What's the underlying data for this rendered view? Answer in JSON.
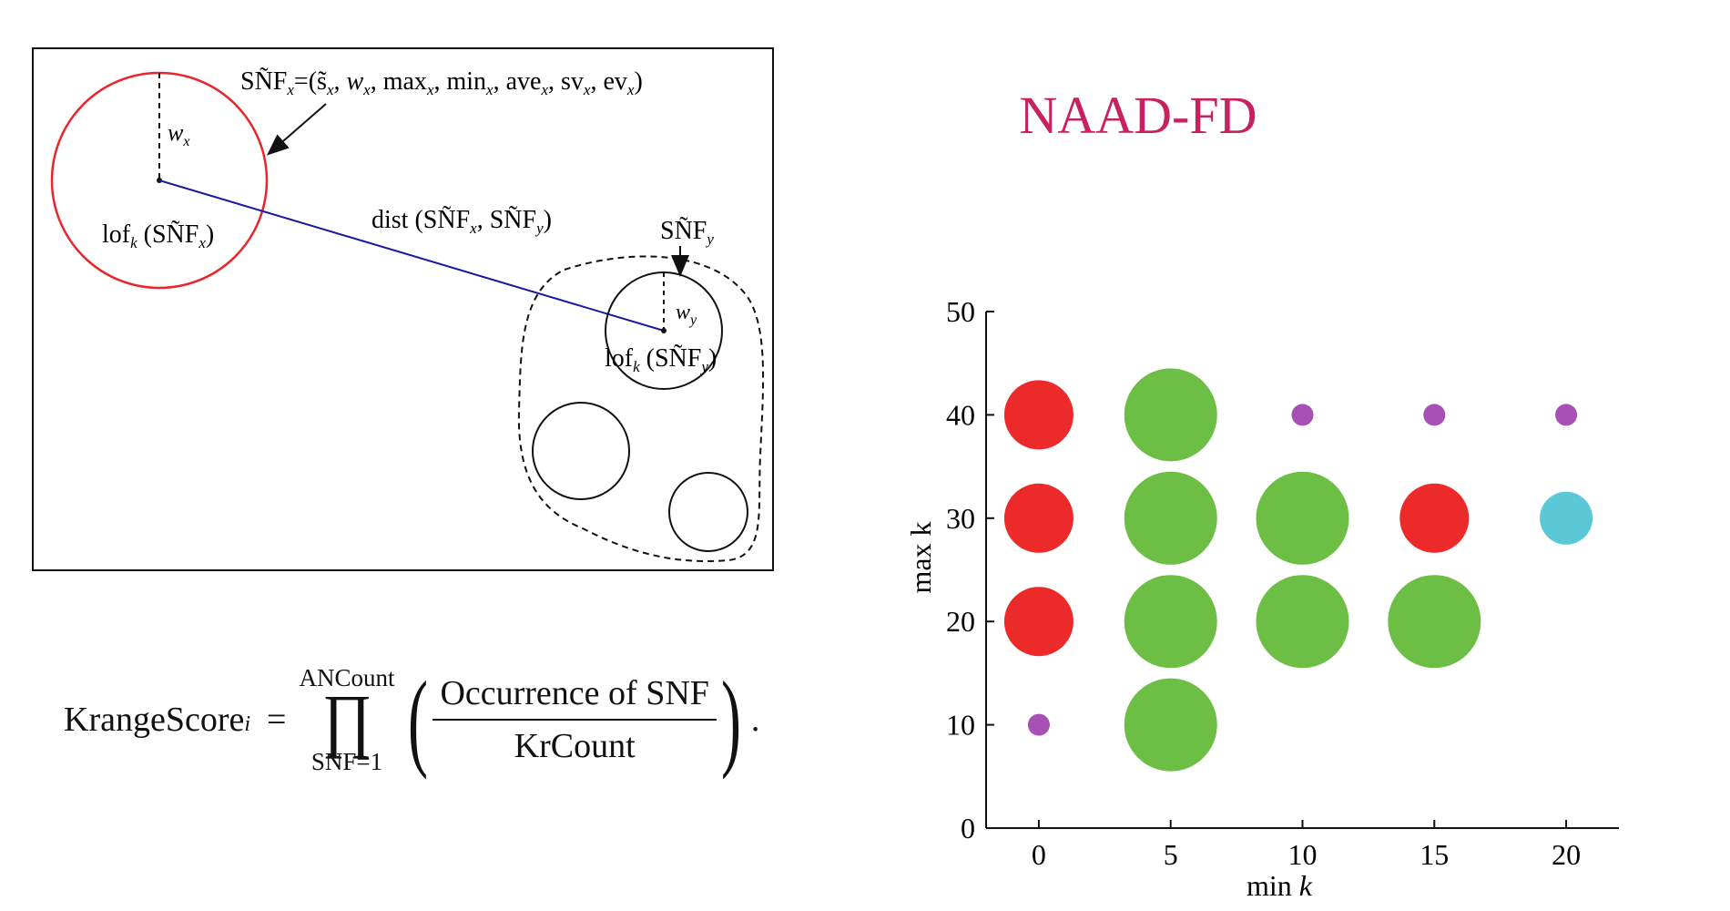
{
  "diagram": {
    "snf_x_label_main": "SÑF",
    "snf_x_label_sub": "x",
    "snf_x_label_rest": "=(s̃",
    "snf_x_label_tuple": ", w",
    "snf_x_label_tuple2": ", max",
    "snf_x_label_tuple3": ", min",
    "snf_x_label_tuple4": ", ave",
    "snf_x_label_tuple5": ", sv",
    "snf_x_label_tuple6": ", ev",
    "snf_x_label_end": ")",
    "sub_x": "x",
    "sub_y": "y",
    "sub_k": "k",
    "wx_label": "w",
    "wy_label": "w",
    "lof_x_prefix": "lof",
    "lof_x_mid": " (SÑF",
    "lof_x_end": ")",
    "dist_prefix": "dist (SÑF",
    "dist_mid": ", SÑF",
    "dist_end": ")",
    "snf_y_label": "SÑF",
    "colors": {
      "red_circle": "#e8262b",
      "dist_line": "#1a1aa0",
      "stroke": "#111111"
    }
  },
  "formula": {
    "lhs": "KrangeScore",
    "lhs_sub": "i",
    "equals": "=",
    "upper_limit": "ANCount",
    "product_symbol": "∏",
    "lower_limit": "SNF=1",
    "left_paren": "(",
    "numerator": "Occurrence of SNF",
    "denominator": "KrCount",
    "right_paren": ")",
    "trailing": "."
  },
  "chart_data": {
    "type": "scatter",
    "title": "NAAD-FD",
    "title_color": "#c8215f",
    "xlabel_prefix": "min ",
    "xlabel_var": "k",
    "ylabel": "max k",
    "xlim": [
      -2,
      22
    ],
    "ylim": [
      0,
      50
    ],
    "x_ticks": [
      0,
      5,
      10,
      15,
      20
    ],
    "y_ticks": [
      0,
      10,
      20,
      30,
      40,
      50
    ],
    "grid": false,
    "legend": "none",
    "colors": {
      "red": "#ec2a2a",
      "green": "#6cbe45",
      "purple": "#a64fb5",
      "cyan": "#5bc8d6"
    },
    "points": [
      {
        "x": 0,
        "y": 40,
        "size": "large",
        "color": "red"
      },
      {
        "x": 0,
        "y": 30,
        "size": "large",
        "color": "red"
      },
      {
        "x": 0,
        "y": 20,
        "size": "large",
        "color": "red"
      },
      {
        "x": 0,
        "y": 10,
        "size": "tiny",
        "color": "purple"
      },
      {
        "x": 5,
        "y": 40,
        "size": "xlarge",
        "color": "green"
      },
      {
        "x": 5,
        "y": 30,
        "size": "xlarge",
        "color": "green"
      },
      {
        "x": 5,
        "y": 20,
        "size": "xlarge",
        "color": "green"
      },
      {
        "x": 5,
        "y": 10,
        "size": "xlarge",
        "color": "green"
      },
      {
        "x": 10,
        "y": 40,
        "size": "tiny",
        "color": "purple"
      },
      {
        "x": 10,
        "y": 30,
        "size": "xlarge",
        "color": "green"
      },
      {
        "x": 10,
        "y": 20,
        "size": "xlarge",
        "color": "green"
      },
      {
        "x": 15,
        "y": 40,
        "size": "tiny",
        "color": "purple"
      },
      {
        "x": 15,
        "y": 30,
        "size": "large",
        "color": "red"
      },
      {
        "x": 15,
        "y": 20,
        "size": "xlarge",
        "color": "green"
      },
      {
        "x": 20,
        "y": 40,
        "size": "tiny",
        "color": "purple"
      },
      {
        "x": 20,
        "y": 30,
        "size": "medium",
        "color": "cyan"
      }
    ]
  }
}
